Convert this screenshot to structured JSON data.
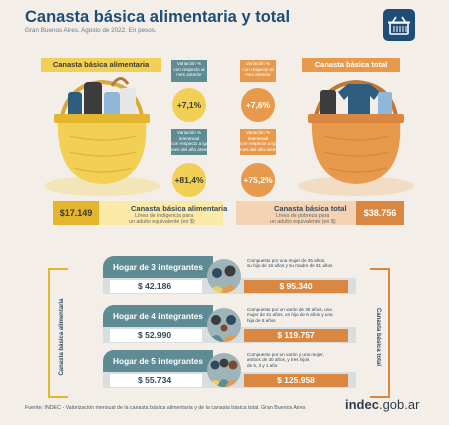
{
  "header": {
    "title": "Canasta básica alimentaria y total",
    "subtitle": "Gran Buenos Aires. Agosto de 2022. En pesos."
  },
  "alimentaria": {
    "label": "Canasta básica alimentaria",
    "monthly_change": {
      "line1": "Variación %",
      "line2": "con respecto al",
      "line3": "mes anterior",
      "value": "+7,1%"
    },
    "yearly_change": {
      "line1": "Variación %",
      "line2": "interanual",
      "line3": "con respecto a igual",
      "line4": "mes del año anterior",
      "value": "+81,4%"
    },
    "amount": "$17.149",
    "strip_title": "Canasta básica alimentaria",
    "strip_text_1": "Línea de indigencia para",
    "strip_text_2": "un adulto equivalente (en $)",
    "side_label": "Canasta básica alimentaria"
  },
  "total": {
    "label": "Canasta básica total",
    "monthly_change": {
      "line1": "Variación %",
      "line2": "con respecto al",
      "line3": "mes anterior",
      "value": "+7,6%"
    },
    "yearly_change": {
      "line1": "Variación %",
      "line2": "interanual",
      "line3": "con respecto a igual",
      "line4": "mes del año anterior",
      "value": "+75,2%"
    },
    "amount": "$38.756",
    "strip_title": "Canasta básica total",
    "strip_text_1": "Línea de pobreza para",
    "strip_text_2": "un adulto equivalente (en $)",
    "side_label": "Canasta básica total"
  },
  "households": [
    {
      "title": "Hogar de 3 integrantes",
      "desc": [
        "Compuesto por una mujer de 35 años,",
        "su hijo de 18 años y su madre de 61 años"
      ],
      "alimentaria": "$ 42.186",
      "total": "$ 95.340"
    },
    {
      "title": "Hogar de 4 integrantes",
      "desc": [
        "Compuesto por un varón de 35 años, una",
        "mujer de 31 años, un hijo de 6 años y una",
        "hija de 8 años"
      ],
      "alimentaria": "$ 52.990",
      "total": "$ 119.757"
    },
    {
      "title": "Hogar de 5 integrantes",
      "desc": [
        "Compuesto por un varón y una mujer,",
        "ambos de 30 años, y tres hijos",
        "de 5, 3 y 1 año"
      ],
      "alimentaria": "$ 55.734",
      "total": "$ 125.958"
    }
  ],
  "footer": {
    "source": "Fuente: INDEC - Valorización mensual de la canasta básica alimentaria y de la canasta básica total. Gran Buenos Aires",
    "brand_main": "indec",
    "brand_suffix": ".gob.ar"
  },
  "colors": {
    "navy": "#1e4d78",
    "yellow": "#f2cf55",
    "orange": "#e79a4c",
    "teal": "#5f8b94",
    "background": "#f3eee7"
  },
  "icons": [
    "basket-logo-icon",
    "food-basket-icon",
    "clothes-basket-icon",
    "family-icon"
  ]
}
